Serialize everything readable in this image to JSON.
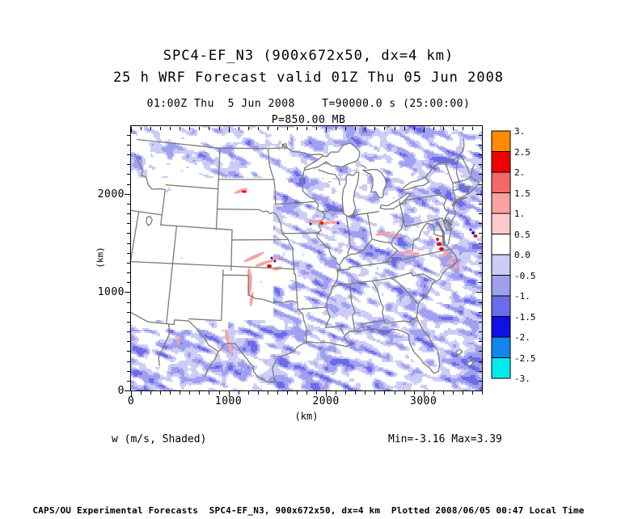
{
  "titles": {
    "line1": "SPC4-EF_N3 (900x672x50, dx=4 km)",
    "line2": "25 h WRF Forecast valid 01Z Thu 05 Jun 2008",
    "line3": "01:00Z Thu  5 Jun 2008    T=90000.0 s (25:00:00)",
    "line4": "P=850.00 MB"
  },
  "chart_data": {
    "type": "heatmap",
    "title": "SPC4-EF_N3 (900x672x50, dx=4 km)",
    "subtitle": "25 h WRF Forecast valid 01Z Thu 05 Jun 2008",
    "valid_time": "01:00Z Thu  5 Jun 2008",
    "forecast_time": "T=90000.0 s (25:00:00)",
    "pressure_level": "P=850.00 MB",
    "field_label": "w (m/s, Shaded)",
    "min": -3.16,
    "max": 3.39,
    "stats_label": "Min=-3.16 Max=3.39",
    "xlabel": "(km)",
    "ylabel": "(km)",
    "x_range_km": [
      0,
      3600
    ],
    "y_range_km": [
      0,
      2688
    ],
    "x_ticks": [
      "0",
      "1000",
      "2000",
      "3000"
    ],
    "x_tick_km": [
      0,
      1000,
      2000,
      3000
    ],
    "y_ticks": [
      "0",
      "1000",
      "2000"
    ],
    "y_tick_km": [
      0,
      1000,
      2000
    ],
    "minor_tick_interval_km": 100,
    "colorbar": {
      "labels": [
        "3.",
        "2.5",
        "2.",
        "1.5",
        "1.",
        "0.5",
        "0.0",
        "-0.5",
        "-1.",
        "-1.5",
        "-2.",
        "-2.5",
        "-3."
      ],
      "levels": [
        3,
        2.5,
        2,
        1.5,
        1,
        0.5,
        0,
        -0.5,
        -1,
        -1.5,
        -2,
        -2.5,
        -3
      ],
      "colors": [
        "#ff8c00",
        "#f10000",
        "#f46868",
        "#f9a2a2",
        "#fbcbcb",
        "#ffffff",
        "#ccccf7",
        "#a0a0f0",
        "#6b6beb",
        "#1010e6",
        "#0f86f0",
        "#00ebeb"
      ]
    },
    "map_line_color": "#7a7a7a",
    "background": "#ffffff"
  },
  "annotations": {
    "left": "w (m/s, Shaded)",
    "right": "Min=-3.16 Max=3.39"
  },
  "footer": "CAPS/OU Experimental Forecasts  SPC4-EF_N3, 900x672x50, dx=4 km  Plotted 2008/06/05 00:47 Local Time"
}
